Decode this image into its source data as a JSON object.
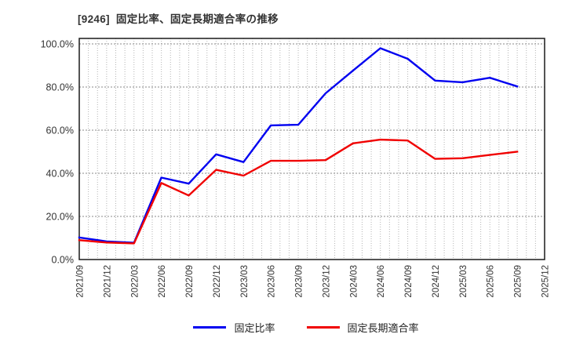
{
  "header": {
    "title": "[9246]  固定比率、固定長期適合率の推移"
  },
  "chart_data": {
    "type": "line",
    "title": "[9246] 固定比率、固定長期適合率の推移",
    "categories": [
      "2021/09",
      "2021/12",
      "2022/03",
      "2022/06",
      "2022/09",
      "2022/12",
      "2023/03",
      "2023/06",
      "2023/09",
      "2023/12",
      "2024/03",
      "2024/06",
      "2024/09",
      "2024/12",
      "2025/03",
      "2025/06",
      "2025/09",
      "2025/12"
    ],
    "series": [
      {
        "name": "固定比率",
        "color": "#0000f0",
        "values": [
          10.2,
          8.4,
          7.8,
          38.0,
          35.2,
          48.8,
          45.2,
          62.2,
          62.5,
          77.1,
          87.6,
          98.0,
          93.1,
          83.0,
          82.2,
          84.3,
          80.3,
          null
        ]
      },
      {
        "name": "固定長期適合率",
        "color": "#f00000",
        "values": [
          9.0,
          7.9,
          7.5,
          35.5,
          29.7,
          41.6,
          38.9,
          45.8,
          45.8,
          46.1,
          53.9,
          55.6,
          55.2,
          46.7,
          47.0,
          48.5,
          50.0,
          null
        ]
      }
    ],
    "xlabel": "",
    "ylabel": "",
    "ylim": [
      0,
      100
    ],
    "y_tick_step": 20,
    "y_ticks": [
      "0.0%",
      "20.0%",
      "40.0%",
      "60.0%",
      "80.0%",
      "100.0%"
    ],
    "grid": true,
    "minor_vertical_divisions": 3,
    "legend_position": "bottom"
  }
}
